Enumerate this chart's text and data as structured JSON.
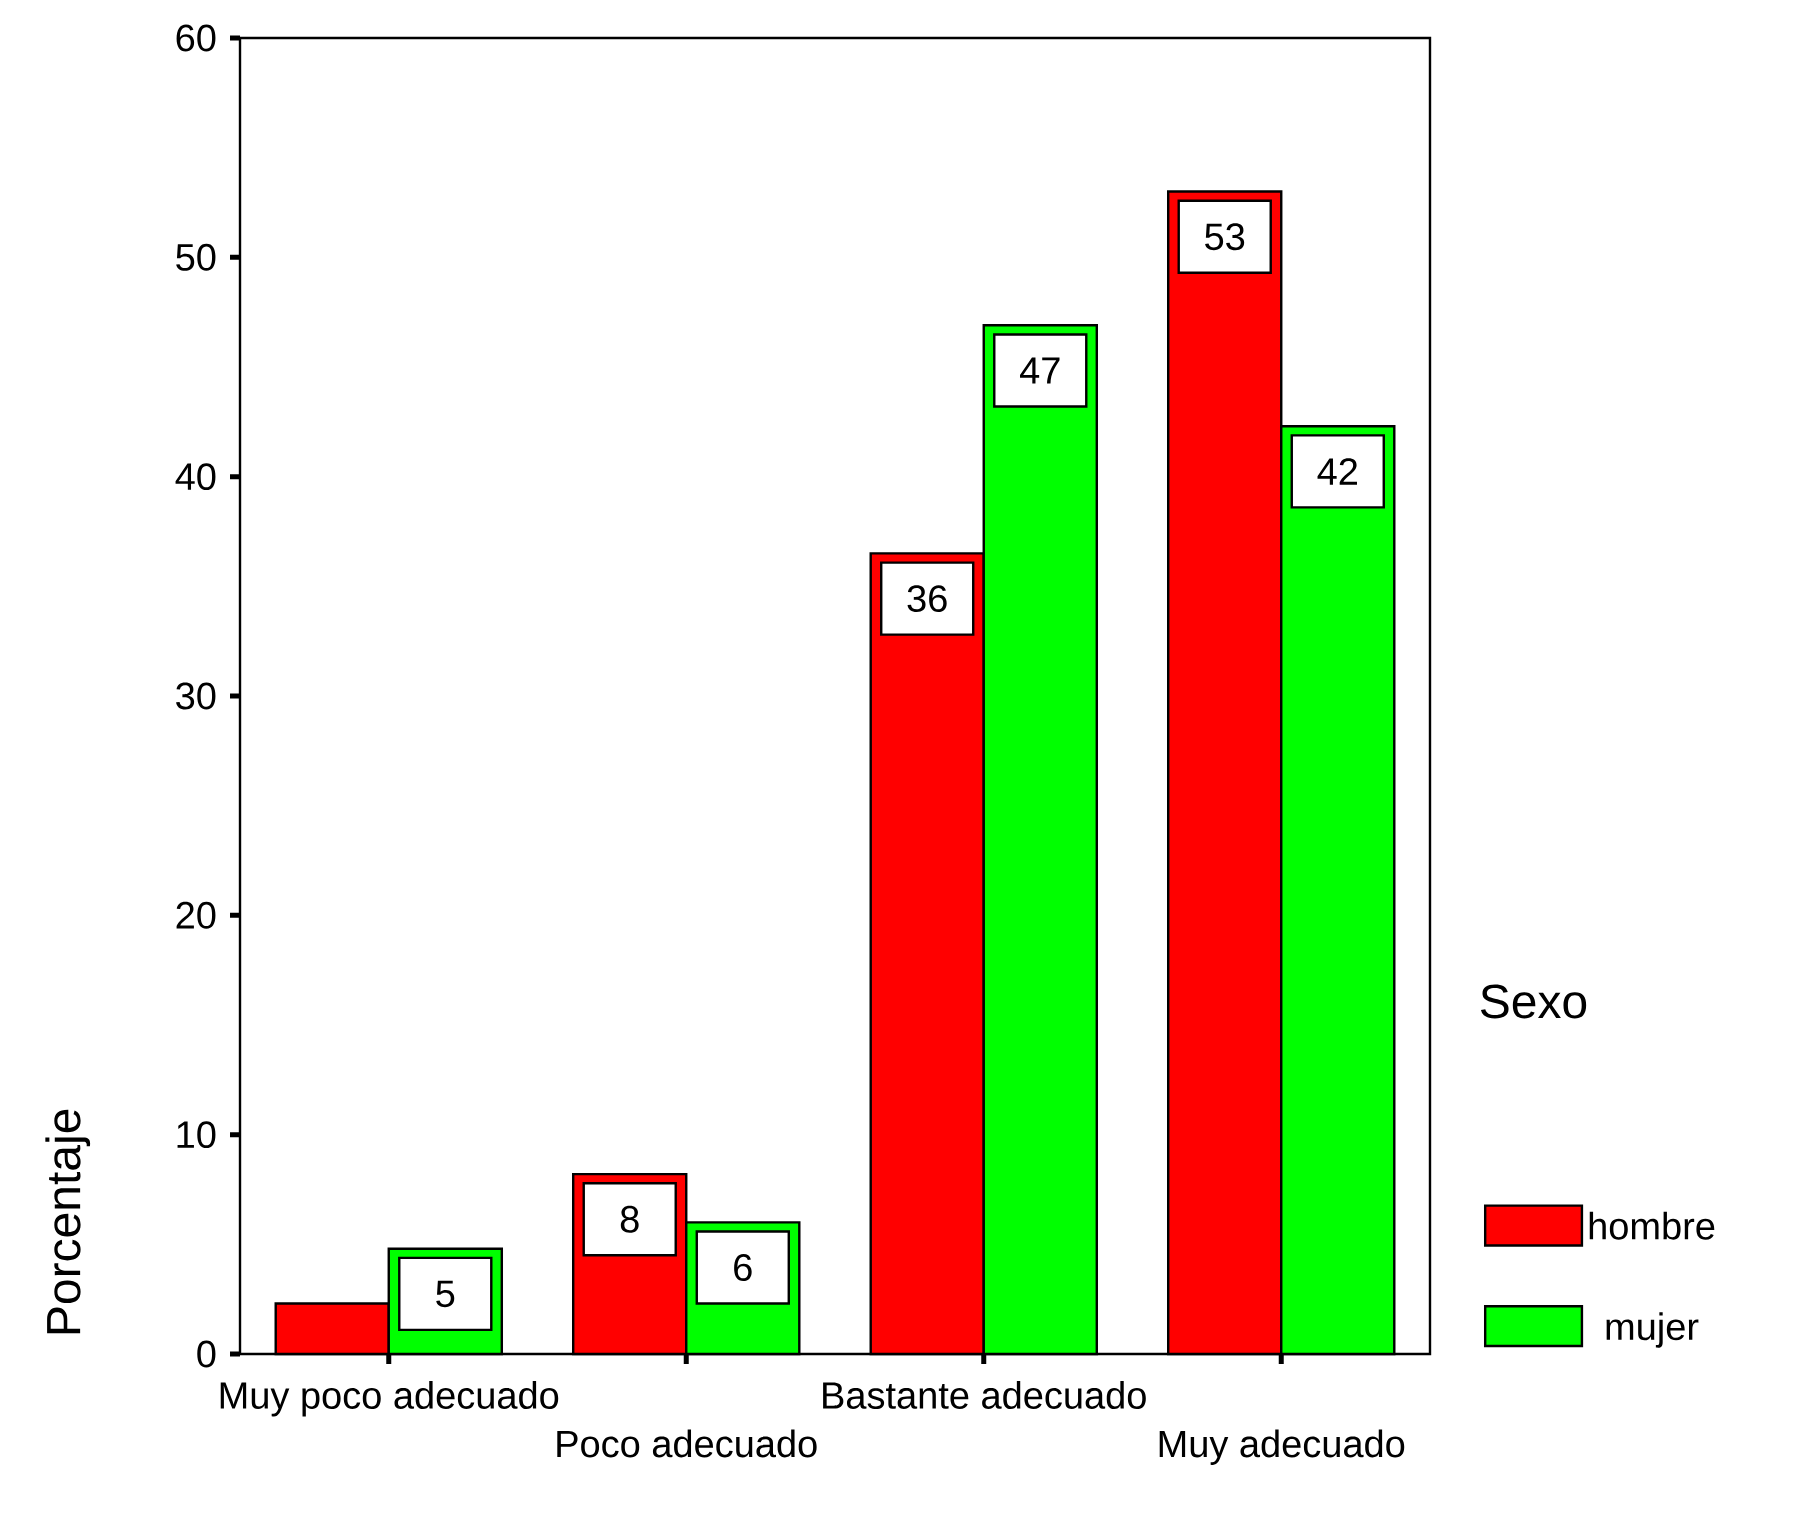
{
  "chart_data": {
    "type": "bar",
    "categories": [
      "Muy poco adecuado",
      "Poco adecuado",
      "Bastante adecuado",
      "Muy adecuado"
    ],
    "series": [
      {
        "name": "hombre",
        "color": "#ff0000",
        "values": [
          2.3,
          8.2,
          36.5,
          53.0
        ],
        "value_labels": [
          null,
          "8",
          "36",
          "53"
        ]
      },
      {
        "name": "mujer",
        "color": "#00ff00",
        "values": [
          4.8,
          6.0,
          46.9,
          42.3
        ],
        "value_labels": [
          "5",
          "6",
          "47",
          "42"
        ]
      }
    ],
    "ylabel": "Porcentaje",
    "legend_title": "Sexo",
    "legend": "right",
    "ylim": [
      0,
      60
    ],
    "yticks": [
      0,
      10,
      20,
      30,
      40,
      50,
      60
    ],
    "grid": false
  }
}
